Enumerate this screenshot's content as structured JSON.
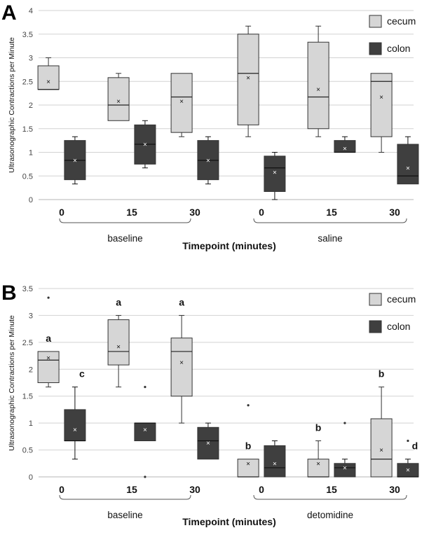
{
  "chart_data": [
    {
      "type": "box",
      "panel_label": "A",
      "title": "",
      "ylabel": "Ultrasonographic Contractions per Minute",
      "xlabel": "Timepoint (minutes)",
      "ylim": [
        0,
        4
      ],
      "yticks": [
        "0",
        "0.5",
        "1",
        "1.5",
        "2",
        "2.5",
        "3",
        "3.5",
        "4"
      ],
      "grid": true,
      "legend": [
        "cecum",
        "colon"
      ],
      "legend_position": "top-right",
      "groups": [
        "baseline",
        "saline"
      ],
      "categories": [
        "0",
        "15",
        "30",
        "0",
        "15",
        "30"
      ],
      "series": [
        {
          "name": "cecum",
          "color": "#d6d6d6",
          "boxes": [
            {
              "category": "0",
              "min": 2.33,
              "q1": 2.33,
              "median": 2.33,
              "q3": 2.83,
              "max": 3.0,
              "mean": 2.5,
              "outliers": [],
              "label": ""
            },
            {
              "category": "15",
              "min": 1.67,
              "q1": 1.67,
              "median": 2.0,
              "q3": 2.58,
              "max": 2.67,
              "mean": 2.08,
              "outliers": [],
              "label": ""
            },
            {
              "category": "30",
              "min": 1.33,
              "q1": 1.42,
              "median": 2.17,
              "q3": 2.67,
              "max": 2.67,
              "mean": 2.08,
              "outliers": [],
              "label": ""
            },
            {
              "category": "0",
              "min": 1.33,
              "q1": 1.58,
              "median": 2.67,
              "q3": 3.5,
              "max": 3.67,
              "mean": 2.58,
              "outliers": [],
              "label": ""
            },
            {
              "category": "15",
              "min": 1.33,
              "q1": 1.5,
              "median": 2.17,
              "q3": 3.33,
              "max": 3.67,
              "mean": 2.33,
              "outliers": [],
              "label": ""
            },
            {
              "category": "30",
              "min": 1.0,
              "q1": 1.33,
              "median": 2.5,
              "q3": 2.67,
              "max": 2.67,
              "mean": 2.17,
              "outliers": [],
              "label": ""
            }
          ]
        },
        {
          "name": "colon",
          "color": "#3f3f3f",
          "boxes": [
            {
              "category": "0",
              "min": 0.33,
              "q1": 0.42,
              "median": 0.83,
              "q3": 1.25,
              "max": 1.33,
              "mean": 0.83,
              "outliers": [],
              "label": ""
            },
            {
              "category": "15",
              "min": 0.67,
              "q1": 0.75,
              "median": 1.17,
              "q3": 1.58,
              "max": 1.67,
              "mean": 1.17,
              "outliers": [],
              "label": ""
            },
            {
              "category": "30",
              "min": 0.33,
              "q1": 0.42,
              "median": 0.83,
              "q3": 1.25,
              "max": 1.33,
              "mean": 0.83,
              "outliers": [],
              "label": ""
            },
            {
              "category": "0",
              "min": 0.0,
              "q1": 0.17,
              "median": 0.67,
              "q3": 0.92,
              "max": 1.0,
              "mean": 0.58,
              "outliers": [],
              "label": ""
            },
            {
              "category": "15",
              "min": 1.0,
              "q1": 1.0,
              "median": 1.0,
              "q3": 1.25,
              "max": 1.33,
              "mean": 1.08,
              "outliers": [],
              "label": ""
            },
            {
              "category": "30",
              "min": 0.33,
              "q1": 0.33,
              "median": 0.5,
              "q3": 1.17,
              "max": 1.33,
              "mean": 0.67,
              "outliers": [],
              "label": ""
            }
          ]
        }
      ]
    },
    {
      "type": "box",
      "panel_label": "B",
      "title": "",
      "ylabel": "Ultrasonographic Contractions per Minute",
      "xlabel": "Timepoint (minutes)",
      "ylim": [
        0,
        3.5
      ],
      "yticks": [
        "0",
        "0.5",
        "1",
        "1.5",
        "2",
        "2.5",
        "3",
        "3.5"
      ],
      "grid": true,
      "legend": [
        "cecum",
        "colon"
      ],
      "legend_position": "top-right",
      "groups": [
        "baseline",
        "detomidine"
      ],
      "categories": [
        "0",
        "15",
        "30",
        "0",
        "15",
        "30"
      ],
      "series": [
        {
          "name": "cecum",
          "color": "#d6d6d6",
          "boxes": [
            {
              "category": "0",
              "min": 1.67,
              "q1": 1.75,
              "median": 2.17,
              "q3": 2.33,
              "max": 2.33,
              "mean": 2.21,
              "outliers": [
                3.33
              ],
              "label": "a"
            },
            {
              "category": "15",
              "min": 1.67,
              "q1": 2.08,
              "median": 2.33,
              "q3": 2.92,
              "max": 3.0,
              "mean": 2.42,
              "outliers": [],
              "label": "a"
            },
            {
              "category": "30",
              "min": 1.0,
              "q1": 1.5,
              "median": 2.33,
              "q3": 2.58,
              "max": 3.0,
              "mean": 2.13,
              "outliers": [],
              "label": "a"
            },
            {
              "category": "0",
              "min": 0.0,
              "q1": 0.0,
              "median": 0.0,
              "q3": 0.33,
              "max": 0.33,
              "mean": 0.25,
              "outliers": [
                1.33
              ],
              "label": "b"
            },
            {
              "category": "15",
              "min": 0.0,
              "q1": 0.0,
              "median": 0.0,
              "q3": 0.33,
              "max": 0.67,
              "mean": 0.25,
              "outliers": [],
              "label": "b"
            },
            {
              "category": "30",
              "min": 0.0,
              "q1": 0.0,
              "median": 0.33,
              "q3": 1.08,
              "max": 1.67,
              "mean": 0.5,
              "outliers": [],
              "label": "b"
            }
          ]
        },
        {
          "name": "colon",
          "color": "#3f3f3f",
          "boxes": [
            {
              "category": "0",
              "min": 0.33,
              "q1": 0.67,
              "median": 0.67,
              "q3": 1.25,
              "max": 1.67,
              "mean": 0.88,
              "outliers": [],
              "label": "c"
            },
            {
              "category": "15",
              "min": 0.67,
              "q1": 0.67,
              "median": 1.0,
              "q3": 1.0,
              "max": 1.0,
              "mean": 0.88,
              "outliers": [
                1.67,
                0.0
              ],
              "label": ""
            },
            {
              "category": "30",
              "min": 0.33,
              "q1": 0.33,
              "median": 0.67,
              "q3": 0.92,
              "max": 1.0,
              "mean": 0.63,
              "outliers": [],
              "label": ""
            },
            {
              "category": "0",
              "min": 0.0,
              "q1": 0.0,
              "median": 0.17,
              "q3": 0.58,
              "max": 0.67,
              "mean": 0.25,
              "outliers": [],
              "label": ""
            },
            {
              "category": "15",
              "min": 0.0,
              "q1": 0.0,
              "median": 0.17,
              "q3": 0.25,
              "max": 0.33,
              "mean": 0.17,
              "outliers": [
                1.0
              ],
              "label": ""
            },
            {
              "category": "30",
              "min": 0.0,
              "q1": 0.0,
              "median": 0.0,
              "q3": 0.25,
              "max": 0.33,
              "mean": 0.13,
              "outliers": [
                0.67
              ],
              "label": "d"
            }
          ]
        }
      ]
    }
  ]
}
